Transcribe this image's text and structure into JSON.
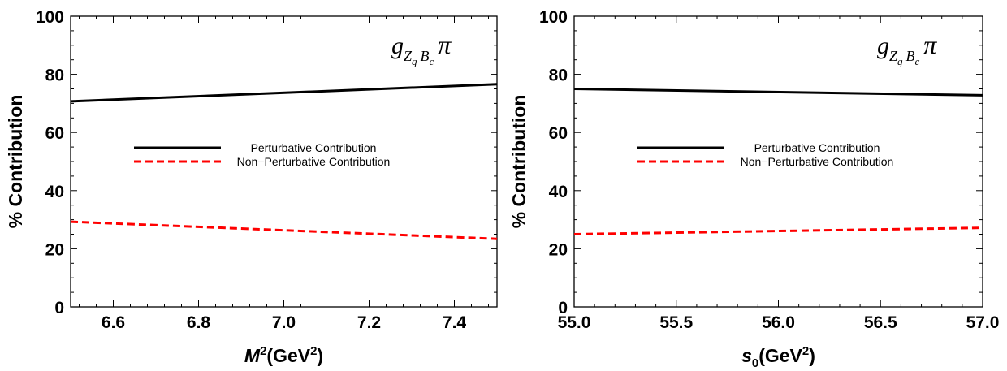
{
  "chart_data": [
    {
      "type": "line",
      "xlabel": {
        "base": "M",
        "sup": "2",
        "unit_open": "(GeV",
        "unit_sup": "2",
        "unit_close": ")"
      },
      "ylabel": "% Contribution",
      "xlim": [
        6.5,
        7.5
      ],
      "ylim": [
        0,
        100
      ],
      "xticks": [
        6.6,
        6.8,
        7.0,
        7.2,
        7.4
      ],
      "xtick_labels": [
        "6.6",
        "6.8",
        "7.0",
        "7.2",
        "7.4"
      ],
      "yticks": [
        0,
        20,
        40,
        60,
        80,
        100
      ],
      "ytick_labels": [
        "0",
        "20",
        "40",
        "60",
        "80",
        "100"
      ],
      "annotation": {
        "g": "g",
        "sub1": "Z",
        "sub1sub": "q",
        "sub2": "B",
        "sub2sub": "c",
        "pi": "π"
      },
      "legend_position": "center-left",
      "series": [
        {
          "name": "Perturbative Contribution",
          "color": "#000000",
          "dash": "solid",
          "x": [
            6.5,
            7.5
          ],
          "y": [
            70.7,
            76.6
          ]
        },
        {
          "name": "Non−Perturbative Contribution",
          "color": "#ff0000",
          "dash": "dashed",
          "x": [
            6.5,
            7.5
          ],
          "y": [
            29.3,
            23.4
          ]
        }
      ]
    },
    {
      "type": "line",
      "xlabel": {
        "base": "s",
        "sub": "0",
        "unit_open": "(GeV",
        "unit_sup": "2",
        "unit_close": ")"
      },
      "ylabel": "% Contribution",
      "xlim": [
        55.0,
        57.0
      ],
      "ylim": [
        0,
        100
      ],
      "xticks": [
        55.0,
        55.5,
        56.0,
        56.5,
        57.0
      ],
      "xtick_labels": [
        "55.0",
        "55.5",
        "56.0",
        "56.5",
        "57.0"
      ],
      "yticks": [
        0,
        20,
        40,
        60,
        80,
        100
      ],
      "ytick_labels": [
        "0",
        "20",
        "40",
        "60",
        "80",
        "100"
      ],
      "annotation": {
        "g": "g",
        "sub1": "Z",
        "sub1sub": "q",
        "sub2": "B",
        "sub2sub": "c",
        "pi": "π"
      },
      "legend_position": "center-left",
      "series": [
        {
          "name": "Perturbative Contribution",
          "color": "#000000",
          "dash": "solid",
          "x": [
            55.0,
            57.0
          ],
          "y": [
            75.0,
            72.8
          ]
        },
        {
          "name": "Non−Perturbative Contribution",
          "color": "#ff0000",
          "dash": "dashed",
          "x": [
            55.0,
            57.0
          ],
          "y": [
            25.0,
            27.2
          ]
        }
      ]
    }
  ]
}
